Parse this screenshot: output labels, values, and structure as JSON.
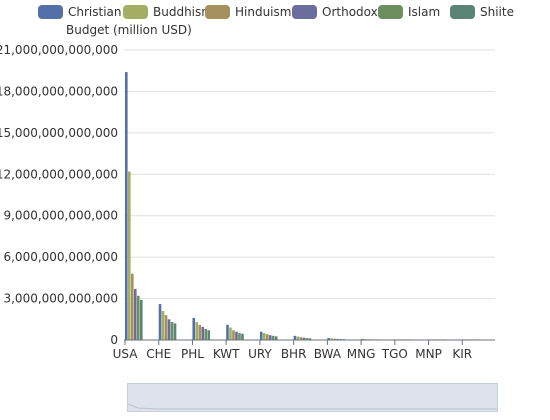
{
  "colors": {
    "Christian": "#5470a8",
    "Buddhism": "#a4ae63",
    "Hinduism": "#a4915e",
    "Orthodox": "#6b6d9e",
    "Islam": "#6b8f5e",
    "Shiite": "#5a8476",
    "grid": "#e0e0e0",
    "axis": "#6e7079"
  },
  "legend": {
    "items": [
      "Christian",
      "Buddhism",
      "Hinduism",
      "Orthodox",
      "Islam",
      "Shiite"
    ]
  },
  "chart_data": {
    "type": "bar",
    "title": "",
    "xlabel": "",
    "ylabel": "Budget (million USD)",
    "ylim": [
      0,
      21000000000000
    ],
    "yticks": [
      "0",
      "3,000,000,000,000",
      "6,000,000,000,000",
      "9,000,000,000,000",
      "12,000,000,000,000",
      "15,000,000,000,000",
      "18,000,000,000,000",
      "21,000,000,000,000"
    ],
    "categories": [
      "USA",
      "CHE",
      "PHL",
      "KWT",
      "URY",
      "BHR",
      "BWA",
      "MNG",
      "TGO",
      "MNP",
      "KIR"
    ],
    "series": [
      {
        "name": "Christian",
        "values": [
          19400000000000,
          2600000000000,
          1600000000000,
          1100000000000,
          600000000000,
          300000000000,
          150000000000,
          80000000000,
          40000000000,
          20000000000,
          10000000000
        ]
      },
      {
        "name": "Buddhism",
        "values": [
          12200000000000,
          2100000000000,
          1300000000000,
          900000000000,
          500000000000,
          250000000000,
          120000000000,
          60000000000,
          30000000000,
          15000000000,
          8000000000
        ]
      },
      {
        "name": "Hinduism",
        "values": [
          4800000000000,
          1800000000000,
          1100000000000,
          700000000000,
          420000000000,
          200000000000,
          100000000000,
          50000000000,
          25000000000,
          12000000000,
          6000000000
        ]
      },
      {
        "name": "Orthodox",
        "values": [
          3700000000000,
          1500000000000,
          950000000000,
          600000000000,
          350000000000,
          170000000000,
          80000000000,
          40000000000,
          20000000000,
          10000000000,
          5000000000
        ]
      },
      {
        "name": "Islam",
        "values": [
          3200000000000,
          1300000000000,
          800000000000,
          500000000000,
          300000000000,
          140000000000,
          70000000000,
          35000000000,
          18000000000,
          9000000000,
          4000000000
        ]
      },
      {
        "name": "Shiite",
        "values": [
          2900000000000,
          1200000000000,
          700000000000,
          450000000000,
          260000000000,
          120000000000,
          60000000000,
          30000000000,
          15000000000,
          8000000000,
          4000000000
        ]
      }
    ]
  }
}
